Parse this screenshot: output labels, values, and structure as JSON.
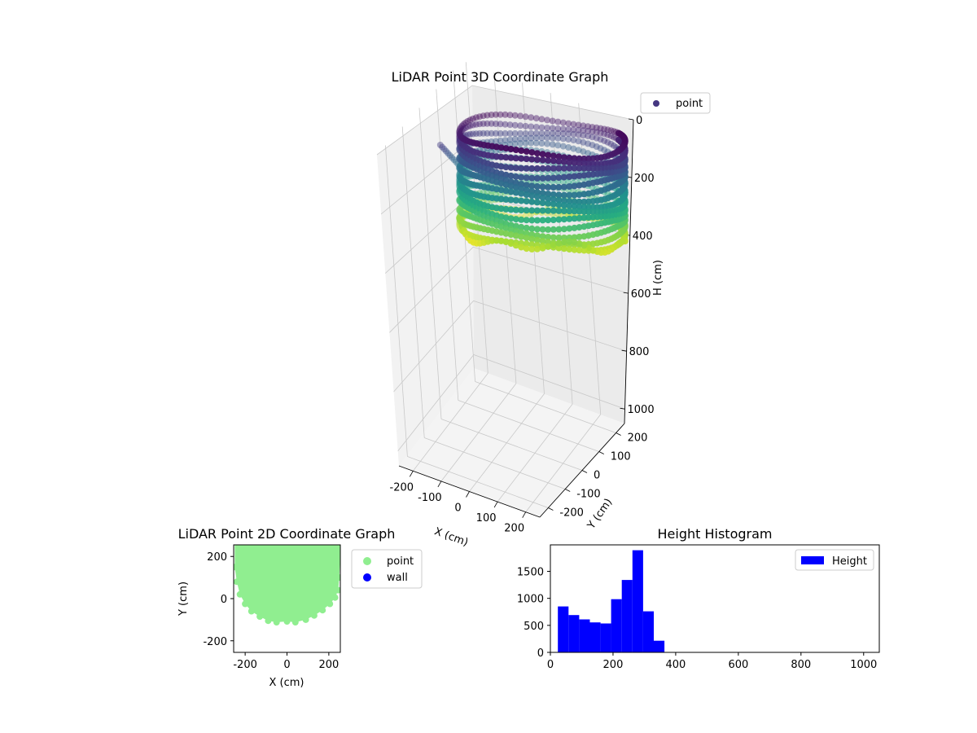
{
  "chart_data": [
    {
      "type": "scatter3d",
      "title": "LiDAR Point 3D Coordinate Graph",
      "xlabel": "X (cm)",
      "ylabel": "Y (cm)",
      "zlabel": "H (cm)",
      "xticks": [
        "-200",
        "-100",
        "0",
        "100",
        "200"
      ],
      "yticks": [
        "200",
        "100",
        "0",
        "-100",
        "-200"
      ],
      "zticks": [
        "0",
        "200",
        "400",
        "600",
        "800",
        "1000"
      ],
      "xlim": [
        -250,
        250
      ],
      "ylim": [
        -250,
        250
      ],
      "zlim": [
        0,
        1050
      ],
      "z_inverted": true,
      "colormap": "viridis",
      "legend": {
        "entries": [
          "point"
        ],
        "position": "upper-right-outside"
      },
      "shape": "cylindrical wall of points, radius ~230 cm, height ~20 to ~380 cm",
      "ring_radius": 230,
      "h_range": [
        20,
        380
      ]
    },
    {
      "type": "scatter",
      "title": "LiDAR Point 2D Coordinate Graph",
      "xlabel": "X (cm)",
      "ylabel": "Y (cm)",
      "xticks": [
        "-200",
        "0",
        "200"
      ],
      "yticks": [
        "200",
        "0",
        "-200"
      ],
      "xlim": [
        -255,
        255
      ],
      "ylim": [
        -255,
        255
      ],
      "series": [
        {
          "name": "point",
          "color": "#90ee90"
        },
        {
          "name": "wall",
          "color": "#0000ff"
        }
      ],
      "legend": {
        "position": "right-outside"
      },
      "fill_outline": [
        [
          -250,
          260
        ],
        [
          -250,
          150
        ],
        [
          -240,
          80
        ],
        [
          -225,
          20
        ],
        [
          -200,
          -25
        ],
        [
          -170,
          -60
        ],
        [
          -130,
          -85
        ],
        [
          -90,
          -105
        ],
        [
          -50,
          -112
        ],
        [
          0,
          -108
        ],
        [
          40,
          -112
        ],
        [
          90,
          -100
        ],
        [
          130,
          -80
        ],
        [
          170,
          -55
        ],
        [
          205,
          -25
        ],
        [
          230,
          5
        ],
        [
          245,
          40
        ],
        [
          250,
          100
        ],
        [
          255,
          200
        ],
        [
          255,
          260
        ]
      ]
    },
    {
      "type": "bar",
      "title": "Height Histogram",
      "xlabel": "",
      "ylabel": "",
      "xticks": [
        "0",
        "200",
        "400",
        "600",
        "800",
        "1000"
      ],
      "yticks": [
        "0",
        "500",
        "1000",
        "1500"
      ],
      "xlim": [
        0,
        1050
      ],
      "ylim": [
        0,
        1990
      ],
      "color": "#0000ff",
      "legend": {
        "entries": [
          "Height"
        ],
        "position": "top-right"
      },
      "bin_edges": [
        24,
        58,
        92,
        126,
        160,
        194,
        228,
        262,
        296,
        330,
        364
      ],
      "values": [
        850,
        690,
        610,
        555,
        535,
        985,
        1340,
        1890,
        760,
        215
      ]
    }
  ]
}
